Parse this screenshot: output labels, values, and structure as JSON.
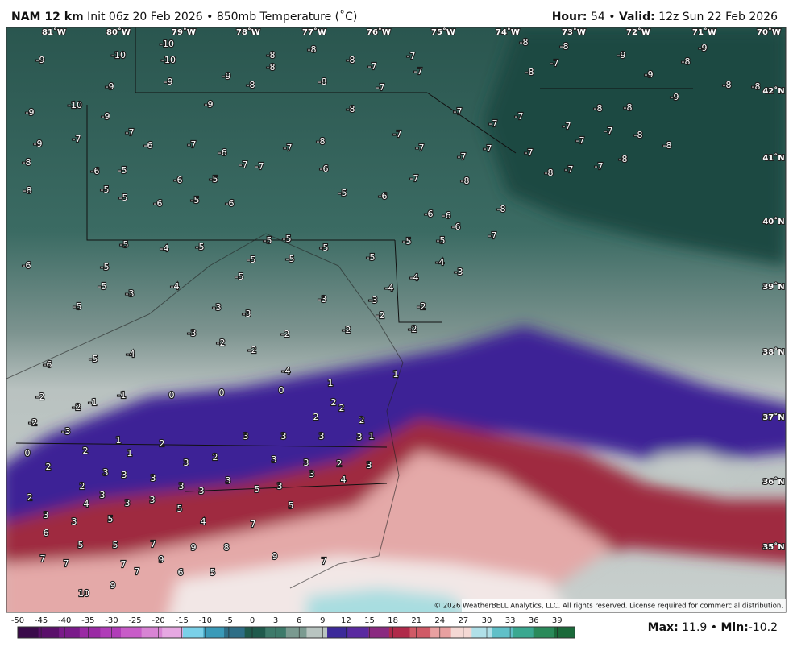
{
  "header": {
    "model": "NAM 12 km",
    "init": "Init 06z 20 Feb 2026",
    "separator": "•",
    "field": "850mb Temperature (˚C)",
    "hour_label": "Hour:",
    "hour": "54",
    "valid_label": "Valid:",
    "valid": "12z Sun 22 Feb 2026"
  },
  "longitudes": [
    "81˚W",
    "80˚W",
    "79˚W",
    "78˚W",
    "77˚W",
    "76˚W",
    "75˚W",
    "74˚W",
    "73˚W",
    "72˚W",
    "71˚W",
    "70˚W"
  ],
  "latitudes": [
    "42˚N",
    "41˚N",
    "40˚N",
    "39˚N",
    "38˚N",
    "37˚N",
    "36˚N",
    "35˚N"
  ],
  "map_values": [
    -9,
    -10,
    -10,
    -10,
    -9,
    -9,
    -10,
    -9,
    -9,
    -9,
    -9,
    -8,
    -8,
    -8,
    -8,
    -8,
    -8,
    -8,
    -7,
    -7,
    -7,
    -7,
    -7,
    -7,
    -7,
    -8,
    -8,
    -7,
    -8,
    -9,
    -9,
    -8,
    -9,
    -8,
    -8,
    -9,
    -8,
    -8,
    -7,
    -7,
    -7,
    -8,
    -8,
    -8,
    -7,
    -7,
    -8,
    -7,
    -7,
    -7,
    -7,
    -7,
    -8,
    -7,
    -7,
    -7,
    -6,
    -7,
    -6,
    -7,
    -7,
    -9,
    -8,
    -8,
    -6,
    -5,
    -5,
    -5,
    -6,
    -6,
    -5,
    -6,
    -5,
    -6,
    -5,
    -6,
    -7,
    -8,
    -8,
    -7,
    -6,
    -6,
    -6,
    -5,
    -5,
    -5,
    -5,
    -5,
    -5,
    -5,
    -5,
    -5,
    -5,
    -4,
    -5,
    -5,
    -6,
    -5,
    -5,
    -3,
    -4,
    -3,
    -3,
    -3,
    -2,
    -2,
    -2,
    -3,
    -3,
    -4,
    -4,
    -4,
    -3,
    -2,
    -2,
    -2,
    -2,
    -4,
    -5,
    -6,
    -2,
    -2,
    -1,
    -1,
    -4,
    -2,
    -3,
    0,
    0,
    0,
    0,
    1,
    1,
    2,
    2,
    2,
    2,
    3,
    3,
    3,
    3,
    1,
    1,
    2,
    2,
    1,
    2,
    2,
    3,
    3,
    3,
    3,
    2,
    3,
    3,
    2,
    3,
    2,
    3,
    4,
    3,
    3,
    3,
    3,
    3,
    3,
    5,
    3,
    3,
    4,
    3,
    5,
    5,
    6,
    5,
    5,
    7,
    4,
    5,
    7,
    7,
    7,
    7,
    7,
    9,
    9,
    8,
    9,
    7,
    6,
    5,
    9,
    10
  ],
  "copyright": "© 2026 WeatherBELL Analytics, LLC. All rights reserved. License required for commercial distribution.",
  "colorbar": {
    "ticks": [
      -50,
      -45,
      -40,
      -35,
      -30,
      -25,
      -20,
      -15,
      -10,
      -5,
      0,
      3,
      6,
      9,
      12,
      15,
      18,
      21,
      24,
      27,
      30,
      33,
      36,
      39
    ]
  },
  "stats": {
    "max_label": "Max:",
    "max": 11.9,
    "separator": "•",
    "min_label": "Min:",
    "min": -10.2
  }
}
